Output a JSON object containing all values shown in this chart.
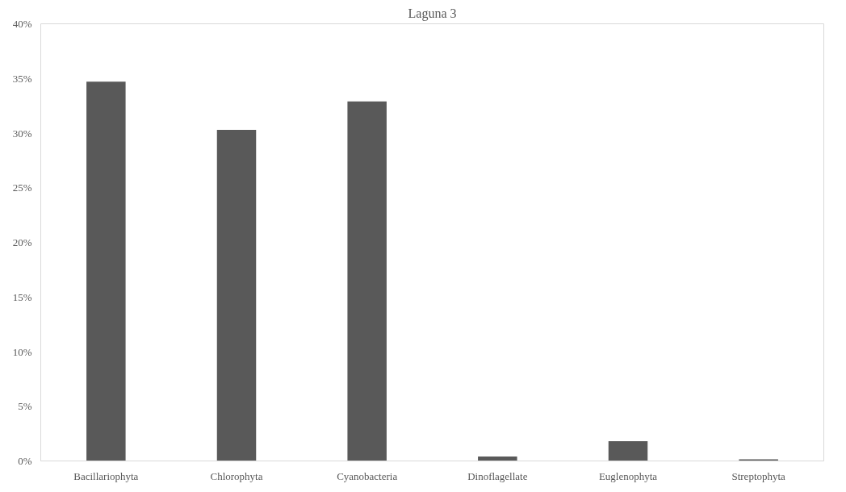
{
  "chart_data": {
    "type": "bar",
    "title": "Laguna 3",
    "categories": [
      "Bacillariophyta",
      "Chlorophyta",
      "Cyanobacteria",
      "Dinoflagellate",
      "Euglenophyta",
      "Streptophyta"
    ],
    "values": [
      34.7,
      30.3,
      32.9,
      0.4,
      1.8,
      0.15
    ],
    "color": "#595959",
    "ylim": [
      0,
      40
    ],
    "yticks": [
      {
        "value": 0,
        "label": "0%"
      },
      {
        "value": 5,
        "label": "5%"
      },
      {
        "value": 10,
        "label": "10%"
      },
      {
        "value": 15,
        "label": "15%"
      },
      {
        "value": 20,
        "label": "20%"
      },
      {
        "value": 25,
        "label": "25%"
      },
      {
        "value": 30,
        "label": "30%"
      },
      {
        "value": 35,
        "label": "35%"
      },
      {
        "value": 40,
        "label": "40%"
      }
    ],
    "grid": false
  }
}
